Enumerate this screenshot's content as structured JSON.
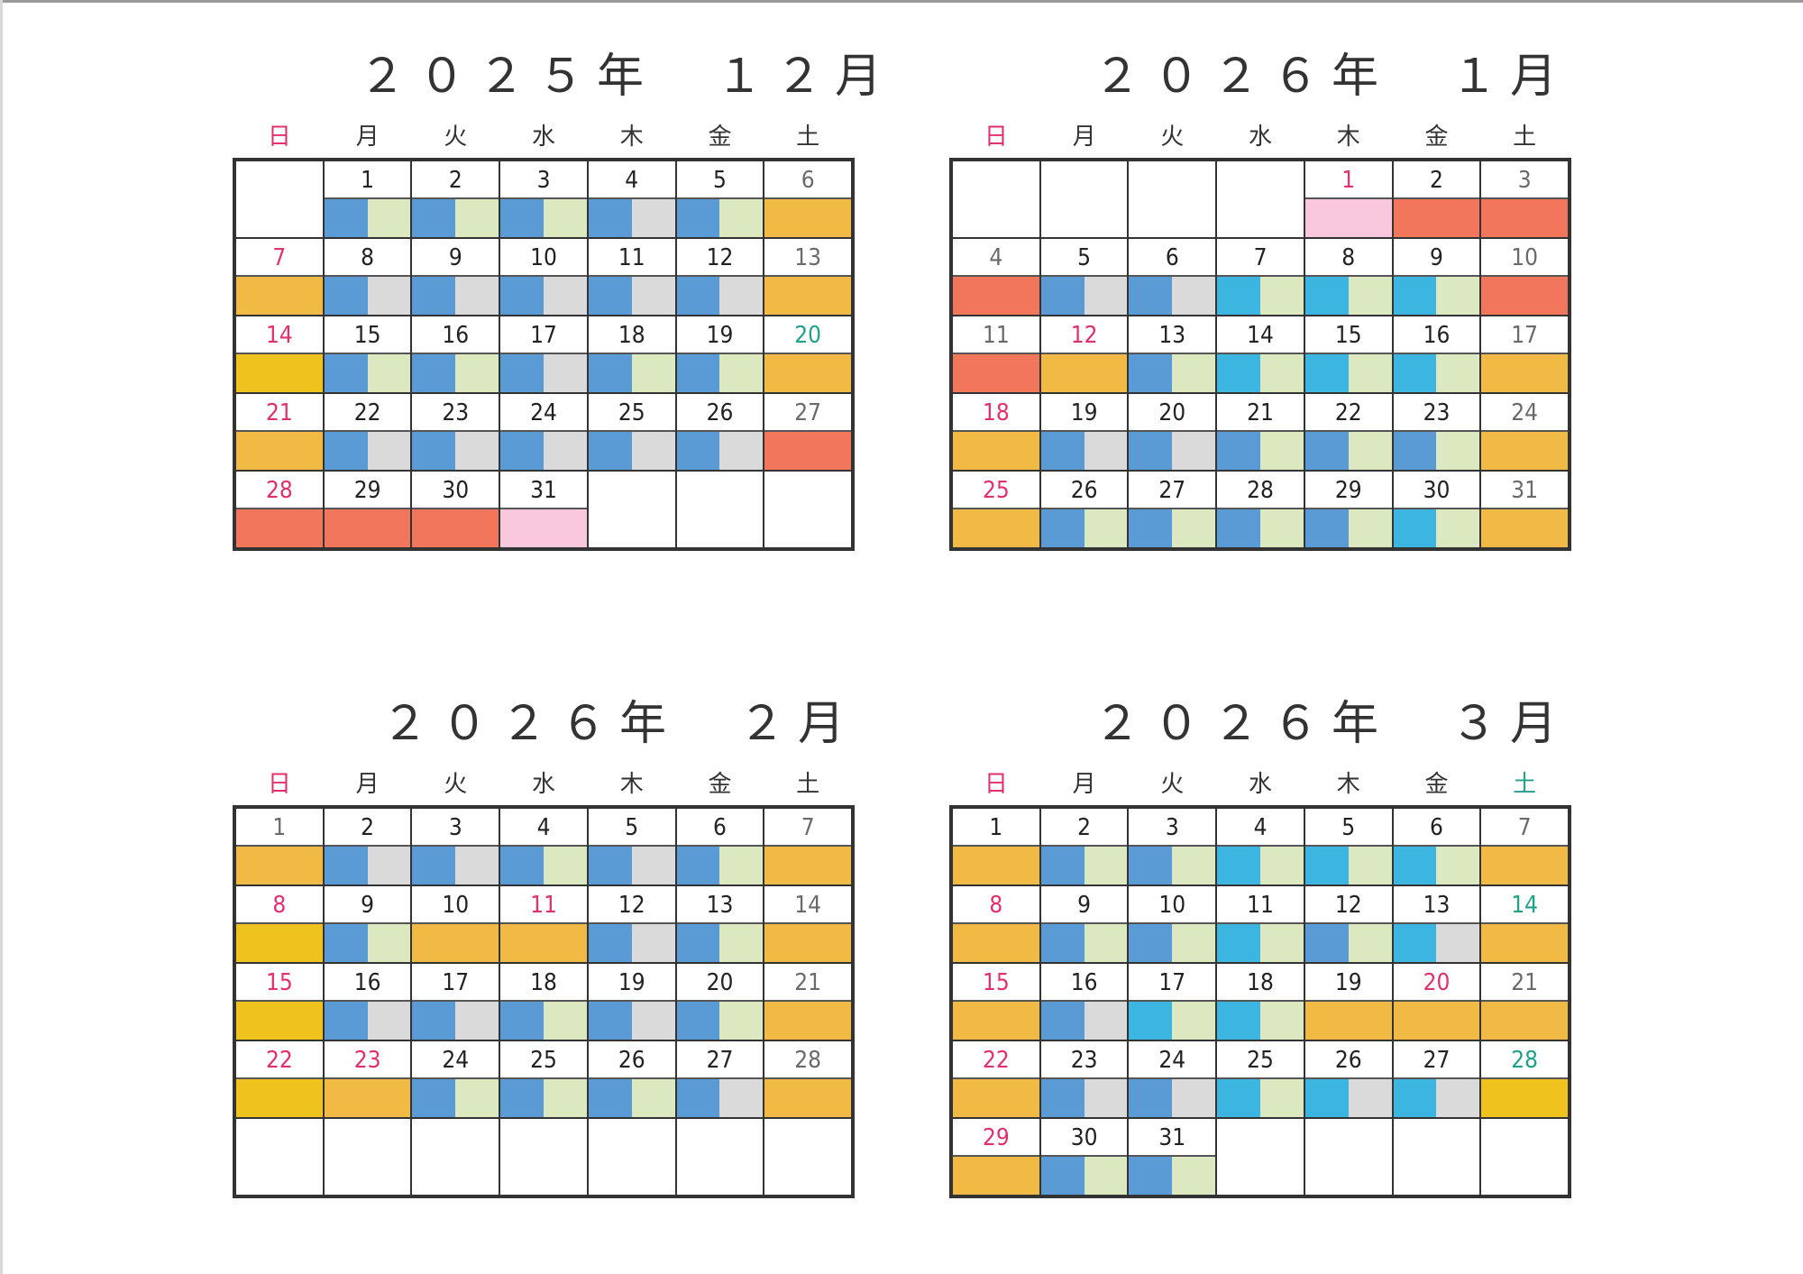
{
  "colors": {
    "blue": "#5b9bd5",
    "cyan": "#3cb6e0",
    "light": "#dadada",
    "pale": "#dce8c0",
    "orange": "#f0ba45",
    "yellow": "#efc21e",
    "red": "#f2765b",
    "pink": "#f9c8dc",
    "date_red": "#e2306e",
    "date_green": "#21a08a"
  },
  "weekdays": [
    "日",
    "月",
    "火",
    "水",
    "木",
    "金",
    "土"
  ],
  "months": [
    {
      "title": "２０２５年　１２月",
      "rows": [
        [
          null,
          [
            "1",
            "",
            "BP"
          ],
          [
            "2",
            "",
            "BP"
          ],
          [
            "3",
            "",
            "BP"
          ],
          [
            "4",
            "",
            "BL"
          ],
          [
            "5",
            "",
            "BP"
          ],
          [
            "6",
            "gray",
            "O"
          ]
        ],
        [
          [
            "7",
            "red",
            "O"
          ],
          [
            "8",
            "",
            "BL"
          ],
          [
            "9",
            "",
            "BL"
          ],
          [
            "10",
            "",
            "BL"
          ],
          [
            "11",
            "",
            "BL"
          ],
          [
            "12",
            "",
            "BL"
          ],
          [
            "13",
            "gray",
            "O"
          ]
        ],
        [
          [
            "14",
            "red",
            "Y"
          ],
          [
            "15",
            "",
            "BP"
          ],
          [
            "16",
            "",
            "BP"
          ],
          [
            "17",
            "",
            "BL"
          ],
          [
            "18",
            "",
            "BP"
          ],
          [
            "19",
            "",
            "BP"
          ],
          [
            "20",
            "green",
            "O"
          ]
        ],
        [
          [
            "21",
            "red",
            "O"
          ],
          [
            "22",
            "",
            "BL"
          ],
          [
            "23",
            "",
            "BL"
          ],
          [
            "24",
            "",
            "BL"
          ],
          [
            "25",
            "",
            "BL"
          ],
          [
            "26",
            "",
            "BL"
          ],
          [
            "27",
            "gray",
            "R"
          ]
        ],
        [
          [
            "28",
            "red",
            "R"
          ],
          [
            "29",
            "",
            "R"
          ],
          [
            "30",
            "",
            "R"
          ],
          [
            "31",
            "",
            "PK"
          ],
          null,
          null,
          null
        ]
      ]
    },
    {
      "title": "２０２６年　１月",
      "rows": [
        [
          null,
          null,
          null,
          null,
          [
            "1",
            "red",
            "PK"
          ],
          [
            "2",
            "",
            "R"
          ],
          [
            "3",
            "gray",
            "R"
          ]
        ],
        [
          [
            "4",
            "gray",
            "R"
          ],
          [
            "5",
            "",
            "BL"
          ],
          [
            "6",
            "",
            "BL"
          ],
          [
            "7",
            "",
            "CP"
          ],
          [
            "8",
            "",
            "CP"
          ],
          [
            "9",
            "",
            "CP"
          ],
          [
            "10",
            "gray",
            "R"
          ]
        ],
        [
          [
            "11",
            "gray",
            "R"
          ],
          [
            "12",
            "red",
            "O"
          ],
          [
            "13",
            "",
            "BP"
          ],
          [
            "14",
            "",
            "CP"
          ],
          [
            "15",
            "",
            "CP"
          ],
          [
            "16",
            "",
            "CP"
          ],
          [
            "17",
            "gray",
            "O"
          ]
        ],
        [
          [
            "18",
            "red",
            "O"
          ],
          [
            "19",
            "",
            "BL"
          ],
          [
            "20",
            "",
            "BL"
          ],
          [
            "21",
            "",
            "BP"
          ],
          [
            "22",
            "",
            "BP"
          ],
          [
            "23",
            "",
            "BP"
          ],
          [
            "24",
            "gray",
            "O"
          ]
        ],
        [
          [
            "25",
            "red",
            "O"
          ],
          [
            "26",
            "",
            "BP"
          ],
          [
            "27",
            "",
            "BP"
          ],
          [
            "28",
            "",
            "BP"
          ],
          [
            "29",
            "",
            "BP"
          ],
          [
            "30",
            "",
            "CP"
          ],
          [
            "31",
            "gray",
            "O"
          ]
        ]
      ]
    },
    {
      "title": "２０２６年　２月",
      "rows": [
        [
          [
            "1",
            "gray",
            "O"
          ],
          [
            "2",
            "",
            "BL"
          ],
          [
            "3",
            "",
            "BL"
          ],
          [
            "4",
            "",
            "BP"
          ],
          [
            "5",
            "",
            "BL"
          ],
          [
            "6",
            "",
            "BP"
          ],
          [
            "7",
            "gray",
            "O"
          ]
        ],
        [
          [
            "8",
            "red",
            "Y"
          ],
          [
            "9",
            "",
            "BP"
          ],
          [
            "10",
            "",
            "O"
          ],
          [
            "11",
            "red",
            "O"
          ],
          [
            "12",
            "",
            "BL"
          ],
          [
            "13",
            "",
            "BP"
          ],
          [
            "14",
            "gray",
            "O"
          ]
        ],
        [
          [
            "15",
            "red",
            "Y"
          ],
          [
            "16",
            "",
            "BL"
          ],
          [
            "17",
            "",
            "BL"
          ],
          [
            "18",
            "",
            "BP"
          ],
          [
            "19",
            "",
            "BL"
          ],
          [
            "20",
            "",
            "BP"
          ],
          [
            "21",
            "gray",
            "O"
          ]
        ],
        [
          [
            "22",
            "red",
            "Y"
          ],
          [
            "23",
            "red",
            "O"
          ],
          [
            "24",
            "",
            "BP"
          ],
          [
            "25",
            "",
            "BP"
          ],
          [
            "26",
            "",
            "BP"
          ],
          [
            "27",
            "",
            "BL"
          ],
          [
            "28",
            "gray",
            "O"
          ]
        ],
        [
          null,
          null,
          null,
          null,
          null,
          null,
          null
        ]
      ]
    },
    {
      "title": "２０２６年　３月",
      "rows": [
        [
          [
            "1",
            "",
            "O"
          ],
          [
            "2",
            "",
            "BP"
          ],
          [
            "3",
            "",
            "BP"
          ],
          [
            "4",
            "",
            "CP"
          ],
          [
            "5",
            "",
            "CP"
          ],
          [
            "6",
            "",
            "CP"
          ],
          [
            "7",
            "gray",
            "O"
          ]
        ],
        [
          [
            "8",
            "red",
            "O"
          ],
          [
            "9",
            "",
            "BP"
          ],
          [
            "10",
            "",
            "BP"
          ],
          [
            "11",
            "",
            "CP"
          ],
          [
            "12",
            "",
            "BP"
          ],
          [
            "13",
            "",
            "CL"
          ],
          [
            "14",
            "green",
            "O"
          ]
        ],
        [
          [
            "15",
            "red",
            "O"
          ],
          [
            "16",
            "",
            "BL"
          ],
          [
            "17",
            "",
            "CP"
          ],
          [
            "18",
            "",
            "CP"
          ],
          [
            "19",
            "",
            "O"
          ],
          [
            "20",
            "red",
            "O"
          ],
          [
            "21",
            "gray",
            "O"
          ]
        ],
        [
          [
            "22",
            "red",
            "O"
          ],
          [
            "23",
            "",
            "BL"
          ],
          [
            "24",
            "",
            "BL"
          ],
          [
            "25",
            "",
            "CP"
          ],
          [
            "26",
            "",
            "CL"
          ],
          [
            "27",
            "",
            "CL"
          ],
          [
            "28",
            "green",
            "Y"
          ]
        ],
        [
          [
            "29",
            "red",
            "O"
          ],
          [
            "30",
            "",
            "BP"
          ],
          [
            "31",
            "",
            "BP"
          ],
          null,
          null,
          null,
          null
        ]
      ]
    }
  ]
}
